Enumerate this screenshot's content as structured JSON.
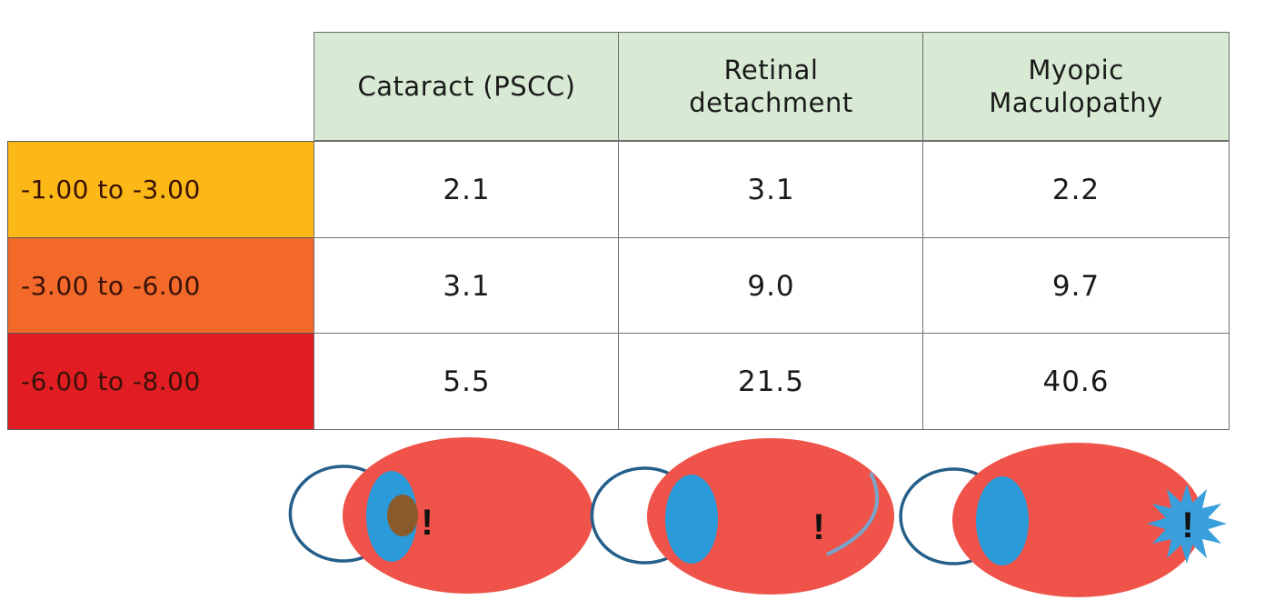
{
  "table": {
    "columns": [
      "Cataract (PSCC)",
      "Retinal detachment",
      "Myopic Maculopathy"
    ],
    "rows": [
      {
        "label": "-1.00 to -3.00",
        "color": "#fbb817",
        "values": [
          "2.1",
          "3.1",
          "2.2"
        ]
      },
      {
        "label": "-3.00 to -6.00",
        "color": "#f2692a",
        "values": [
          "3.1",
          "9.0",
          "9.7"
        ]
      },
      {
        "label": "-6.00 to -8.00",
        "color": "#e11d23",
        "values": [
          "5.5",
          "21.5",
          "40.6"
        ]
      }
    ]
  },
  "eye_icons": [
    {
      "condition": "cataract",
      "mark": "!"
    },
    {
      "condition": "retinal-detachment",
      "mark": "!"
    },
    {
      "condition": "myopic-maculopathy",
      "mark": "!"
    }
  ],
  "colors": {
    "header_fill": "#d8ead3",
    "eye_fill": "#ef5349",
    "cornea_stroke": "#245f8a",
    "lens_fill": "#2a9ad8",
    "cataract_fill": "#8a5a2a",
    "retina_line": "#7aa3c9",
    "lesion_fill": "#3aa0dc"
  }
}
